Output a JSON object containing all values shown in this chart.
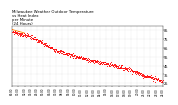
{
  "title": "Milwaukee Weather Outdoor Temperature\nvs Heat Index\nper Minute\n(24 Hours)",
  "title_fontsize": 2.8,
  "title_color": "#000000",
  "bg_color": "#ffffff",
  "plot_bg_color": "#ffffff",
  "grid_color": "#aaaaaa",
  "temp_color": "#ff0000",
  "heat_color": "#ff8800",
  "ylim": [
    22,
    90
  ],
  "xlim": [
    0,
    1440
  ],
  "yticks": [
    25,
    35,
    45,
    55,
    65,
    75,
    85
  ],
  "ylabel_fontsize": 2.5,
  "xlabel_fontsize": 2.0,
  "scatter_size": 0.4,
  "temp_trend_x": [
    0,
    60,
    120,
    180,
    240,
    300,
    360,
    420,
    480,
    540,
    600,
    660,
    720,
    780,
    840,
    900,
    960,
    1020,
    1080,
    1140,
    1200,
    1260,
    1320,
    1380,
    1440
  ],
  "temp_trend_y": [
    84,
    82,
    80,
    78,
    74,
    70,
    66,
    63,
    60,
    58,
    56,
    54,
    52,
    50,
    49,
    47,
    46,
    44,
    42,
    40,
    37,
    34,
    32,
    30,
    27
  ],
  "heat_trend_x": [
    0,
    30,
    60,
    90,
    120
  ],
  "heat_trend_y": [
    86,
    85,
    84,
    83,
    82
  ],
  "xtick_minutes": [
    0,
    60,
    120,
    180,
    240,
    300,
    360,
    420,
    480,
    540,
    600,
    660,
    720,
    780,
    840,
    900,
    960,
    1020,
    1080,
    1140,
    1200,
    1260,
    1320,
    1380,
    1440
  ],
  "xtick_labels": [
    "00:00",
    "01:00",
    "02:00",
    "03:00",
    "04:00",
    "05:00",
    "06:00",
    "07:00",
    "08:00",
    "09:00",
    "10:00",
    "11:00",
    "12:00",
    "13:00",
    "14:00",
    "15:00",
    "16:00",
    "17:00",
    "18:00",
    "19:00",
    "20:00",
    "21:00",
    "22:00",
    "23:00",
    "24:00"
  ]
}
